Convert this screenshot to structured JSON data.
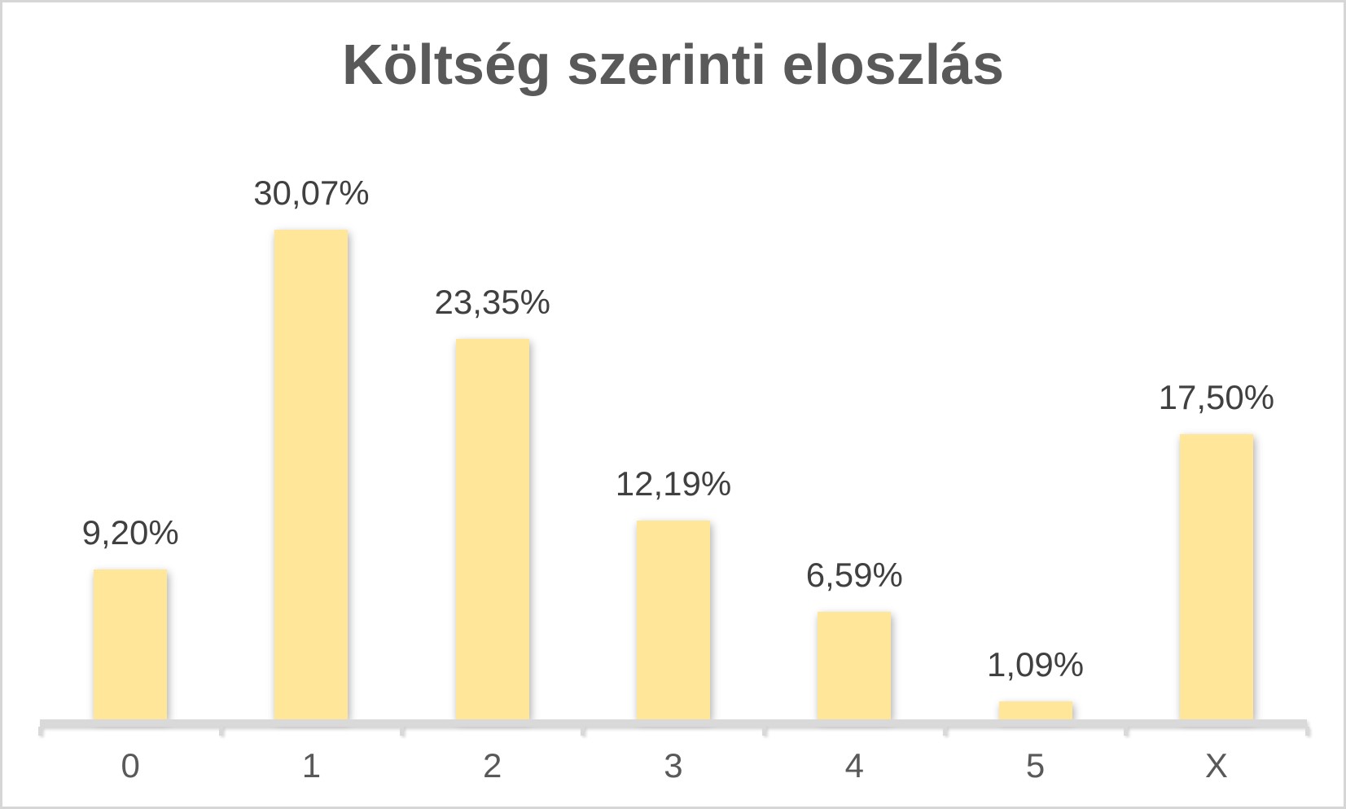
{
  "chart_data": {
    "type": "bar",
    "title": "Költség szerinti eloszlás",
    "categories": [
      "0",
      "1",
      "2",
      "3",
      "4",
      "5",
      "X"
    ],
    "values": [
      9.2,
      30.07,
      23.35,
      12.19,
      6.59,
      1.09,
      17.5
    ],
    "value_labels": [
      "9,20%",
      "30,07%",
      "23,35%",
      "12,19%",
      "6,59%",
      "1,09%",
      "17,50%"
    ],
    "xlabel": "",
    "ylabel": "",
    "ylim": [
      0,
      44
    ],
    "grid": false,
    "legend": null,
    "colors": {
      "bar_fill": "#FFE699",
      "axis_line": "#D9D9D9",
      "title_text": "#595959",
      "data_label_text": "#404040",
      "category_label_text": "#595959",
      "frame_border": "#D6D6D6",
      "background": "#FFFFFF"
    }
  }
}
